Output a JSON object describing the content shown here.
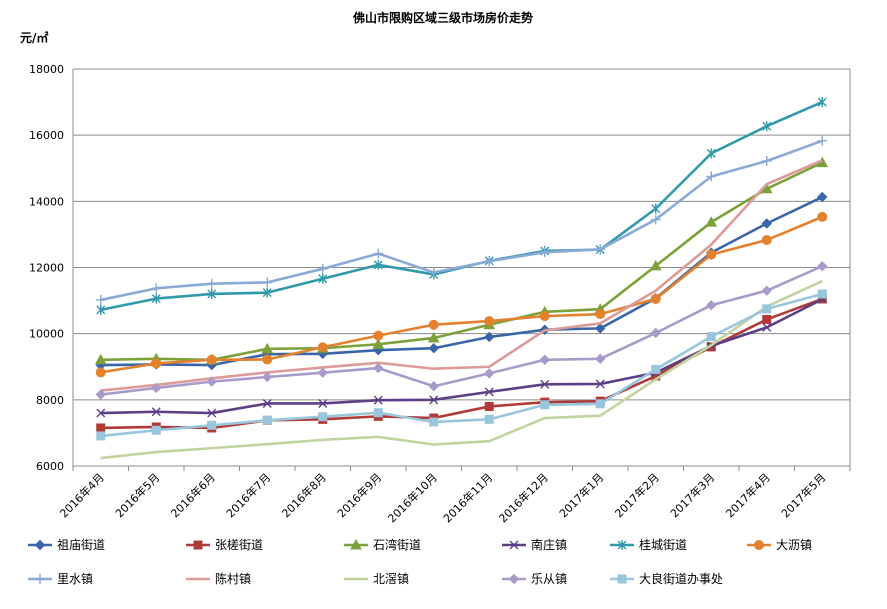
{
  "chart_data": {
    "type": "line",
    "title": "佛山市限购区域三级市场房价走势",
    "ylabel": "元/㎡",
    "ylim": [
      6000,
      18000
    ],
    "yticks": [
      6000,
      8000,
      10000,
      12000,
      14000,
      16000,
      18000
    ],
    "grid": true,
    "legend_position": "bottom",
    "categories": [
      "2016年4月",
      "2016年5月",
      "2016年6月",
      "2016年7月",
      "2016年8月",
      "2016年9月",
      "2016年10月",
      "2016年11月",
      "2016年12月",
      "2017年1月",
      "2017年2月",
      "2017年3月",
      "2017年4月",
      "2017年5月"
    ],
    "series": [
      {
        "name": "祖庙街道",
        "color": "#3a66a8",
        "marker": "diamond",
        "values": [
          9050,
          9070,
          9050,
          9380,
          9390,
          9500,
          9560,
          9900,
          10120,
          10160,
          11070,
          12450,
          13330,
          14130
        ]
      },
      {
        "name": "张槎街道",
        "color": "#b03a36",
        "marker": "square",
        "values": [
          7150,
          7180,
          7150,
          7380,
          7410,
          7500,
          7450,
          7800,
          7930,
          7960,
          8720,
          9600,
          10430,
          11050
        ]
      },
      {
        "name": "石湾街道",
        "color": "#7da13a",
        "marker": "triangle",
        "values": [
          9210,
          9240,
          9210,
          9540,
          9560,
          9680,
          9870,
          10270,
          10660,
          10740,
          12050,
          13370,
          14380,
          15170
        ]
      },
      {
        "name": "南庄镇",
        "color": "#5d3f86",
        "marker": "x",
        "values": [
          7600,
          7640,
          7600,
          7890,
          7890,
          7990,
          8000,
          8240,
          8470,
          8480,
          8820,
          9630,
          10190,
          11040
        ]
      },
      {
        "name": "桂城街道",
        "color": "#2f9aab",
        "marker": "star",
        "values": [
          10720,
          11060,
          11200,
          11240,
          11660,
          12080,
          11790,
          12200,
          12500,
          12540,
          13780,
          15450,
          16270,
          17000
        ]
      },
      {
        "name": "大沥镇",
        "color": "#e2822e",
        "marker": "circle",
        "values": [
          8830,
          9100,
          9210,
          9220,
          9590,
          9940,
          10270,
          10380,
          10530,
          10590,
          11050,
          12390,
          12830,
          13530
        ]
      },
      {
        "name": "里水镇",
        "color": "#8aaad6",
        "marker": "plus",
        "values": [
          11020,
          11370,
          11510,
          11550,
          11960,
          12420,
          11850,
          12190,
          12460,
          12550,
          13450,
          14750,
          15220,
          15830
        ]
      },
      {
        "name": "陈村镇",
        "color": "#dc9b99",
        "marker": "none",
        "values": [
          8280,
          8450,
          8650,
          8830,
          8980,
          9120,
          8940,
          9000,
          10100,
          10310,
          11300,
          12690,
          14520,
          15240
        ]
      },
      {
        "name": "北滘镇",
        "color": "#c1d49e",
        "marker": "none",
        "values": [
          6240,
          6420,
          6540,
          6660,
          6790,
          6880,
          6650,
          6750,
          7450,
          7520,
          8620,
          9650,
          10820,
          11590
        ]
      },
      {
        "name": "乐从镇",
        "color": "#a99bc9",
        "marker": "diamond",
        "values": [
          8160,
          8360,
          8550,
          8690,
          8820,
          8960,
          8410,
          8800,
          9210,
          9240,
          10020,
          10860,
          11300,
          12040
        ]
      },
      {
        "name": "大良街道办事处",
        "color": "#97c6dd",
        "marker": "square",
        "values": [
          6910,
          7080,
          7230,
          7380,
          7490,
          7610,
          7330,
          7410,
          7850,
          7880,
          8920,
          9910,
          10750,
          11200
        ]
      }
    ]
  }
}
